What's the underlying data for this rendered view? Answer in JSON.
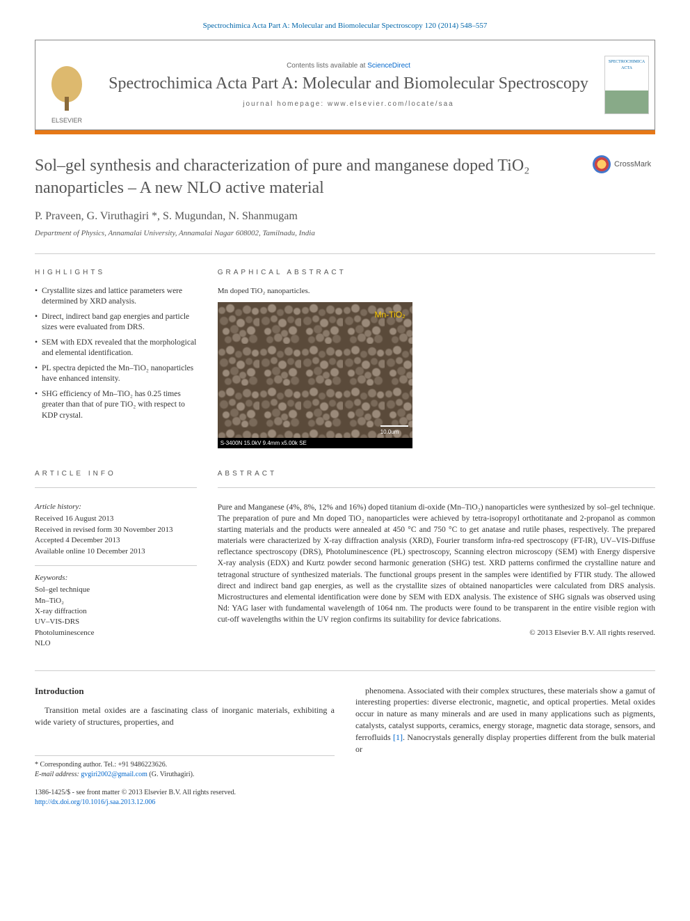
{
  "citation": "Spectrochimica Acta Part A: Molecular and Biomolecular Spectroscopy 120 (2014) 548–557",
  "header": {
    "contents_label": "Contents lists available at ",
    "scidirect": "ScienceDirect",
    "journal_name": "Spectrochimica Acta Part A: Molecular and Biomolecular Spectroscopy",
    "homepage_label": "journal homepage: www.elsevier.com/locate/saa",
    "cover_label": "SPECTROCHIMICA ACTA"
  },
  "title": "Sol–gel synthesis and characterization of pure and manganese doped TiO₂ nanoparticles – A new NLO active material",
  "crossmark": "CrossMark",
  "authors": "P. Praveen, G. Viruthagiri *, S. Mugundan, N. Shanmugam",
  "affiliation": "Department of Physics, Annamalai University, Annamalai Nagar 608002, Tamilnadu, India",
  "highlights": {
    "heading": "HIGHLIGHTS",
    "items": [
      "Crystallite sizes and lattice parameters were determined by XRD analysis.",
      "Direct, indirect band gap energies and particle sizes were evaluated from DRS.",
      "SEM with EDX revealed that the morphological and elemental identification.",
      "PL spectra depicted the Mn–TiO₂ nanoparticles have enhanced intensity.",
      "SHG efficiency of Mn–TiO₂ has 0.25 times greater than that of pure TiO₂ with respect to KDP crystal."
    ]
  },
  "graphical": {
    "heading": "GRAPHICAL ABSTRACT",
    "caption": "Mn doped TiO₂ nanoparticles.",
    "image": {
      "overlay_label": "Mn-TiO₂",
      "footer_left": "S-3400N 15.0kV 9.4mm x5.00k SE",
      "scale_label": "10.0um",
      "background_color": "#5a4a3a",
      "label_color": "#ffcc00"
    }
  },
  "article_info": {
    "heading": "ARTICLE INFO",
    "history_title": "Article history:",
    "history": [
      "Received 16 August 2013",
      "Received in revised form 30 November 2013",
      "Accepted 4 December 2013",
      "Available online 10 December 2013"
    ],
    "keywords_title": "Keywords:",
    "keywords": [
      "Sol–gel technique",
      "Mn–TiO₂",
      "X-ray diffraction",
      "UV–VIS-DRS",
      "Photoluminescence",
      "NLO"
    ]
  },
  "abstract": {
    "heading": "ABSTRACT",
    "text": "Pure and Manganese (4%, 8%, 12% and 16%) doped titanium di-oxide (Mn–TiO₂) nanoparticles were synthesized by sol–gel technique. The preparation of pure and Mn doped TiO₂ nanoparticles were achieved by tetra-isopropyl orthotitanate and 2-propanol as common starting materials and the products were annealed at 450 °C and 750 °C to get anatase and rutile phases, respectively. The prepared materials were characterized by X-ray diffraction analysis (XRD), Fourier transform infra-red spectroscopy (FT-IR), UV–VIS-Diffuse reflectance spectroscopy (DRS), Photoluminescence (PL) spectroscopy, Scanning electron microscopy (SEM) with Energy dispersive X-ray analysis (EDX) and Kurtz powder second harmonic generation (SHG) test. XRD patterns confirmed the crystalline nature and tetragonal structure of synthesized materials. The functional groups present in the samples were identified by FTIR study. The allowed direct and indirect band gap energies, as well as the crystallite sizes of obtained nanoparticles were calculated from DRS analysis. Microstructures and elemental identification were done by SEM with EDX analysis. The existence of SHG signals was observed using Nd: YAG laser with fundamental wavelength of 1064 nm. The products were found to be transparent in the entire visible region with cut-off wavelengths within the UV region confirms its suitability for device fabrications.",
    "copyright": "© 2013 Elsevier B.V. All rights reserved."
  },
  "introduction": {
    "heading": "Introduction",
    "col1": "Transition metal oxides are a fascinating class of inorganic materials, exhibiting a wide variety of structures, properties, and",
    "col2": "phenomena. Associated with their complex structures, these materials show a gamut of interesting properties: diverse electronic, magnetic, and optical properties. Metal oxides occur in nature as many minerals and are used in many applications such as pigments, catalysts, catalyst supports, ceramics, energy storage, magnetic data storage, sensors, and ferrofluids [1]. Nanocrystals generally display properties different from the bulk material or"
  },
  "footer": {
    "corresponding_label": "* Corresponding author. Tel.: +91 9486223626.",
    "email_label": "E-mail address:",
    "email": "gvgiri2002@gmail.com",
    "email_name": "(G. Viruthagiri).",
    "issn": "1386-1425/$ - see front matter © 2013 Elsevier B.V. All rights reserved.",
    "doi": "http://dx.doi.org/10.1016/j.saa.2013.12.006"
  },
  "colors": {
    "accent_orange": "#e67817",
    "link_blue": "#0066cc",
    "text_gray": "#555555"
  }
}
